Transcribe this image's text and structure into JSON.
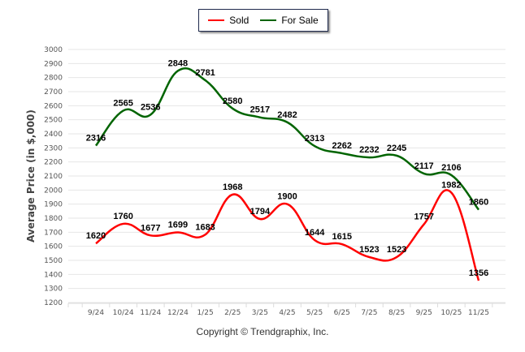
{
  "chart_data": {
    "type": "line",
    "title": "",
    "xlabel": "",
    "ylabel": "Average Price (in $,000)",
    "ylim": [
      1200,
      3000
    ],
    "yticks": [
      1200,
      1300,
      1400,
      1500,
      1600,
      1700,
      1800,
      1900,
      2000,
      2100,
      2200,
      2300,
      2400,
      2500,
      2600,
      2700,
      2800,
      2900,
      3000
    ],
    "grid": true,
    "legend_position": "top-center",
    "categories": [
      "9/24",
      "10/24",
      "11/24",
      "12/24",
      "1/25",
      "2/25",
      "3/25",
      "4/25",
      "5/25",
      "6/25",
      "7/25",
      "8/25",
      "9/25",
      "10/25",
      "11/25"
    ],
    "series": [
      {
        "name": "Sold",
        "color": "#ff0000",
        "values": [
          1620,
          1760,
          1677,
          1699,
          1683,
          1968,
          1794,
          1900,
          1644,
          1615,
          1523,
          1523,
          1757,
          1982,
          1356
        ]
      },
      {
        "name": "For Sale",
        "color": "#006400",
        "values": [
          2316,
          2565,
          2536,
          2848,
          2781,
          2580,
          2517,
          2482,
          2313,
          2262,
          2232,
          2245,
          2117,
          2106,
          1860
        ]
      }
    ]
  },
  "legend": {
    "items": [
      {
        "label": "Sold",
        "color": "#ff0000"
      },
      {
        "label": "For Sale",
        "color": "#006400"
      }
    ]
  },
  "footer": {
    "copyright": "Copyright © Trendgraphix, Inc."
  }
}
